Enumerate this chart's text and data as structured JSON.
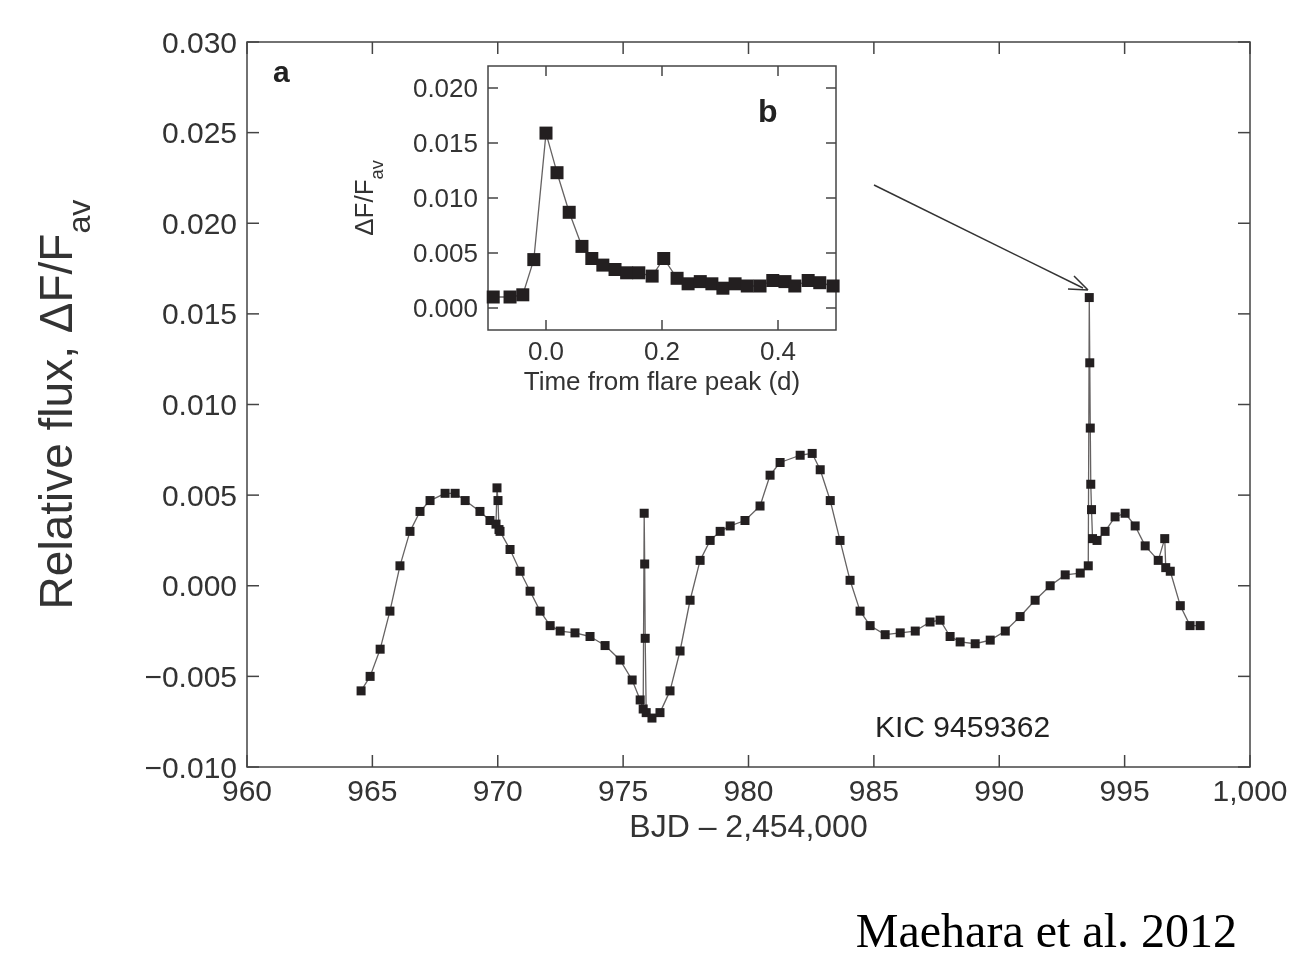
{
  "chart_data": [
    {
      "type": "line",
      "xlabel": "BJD – 2,454,000",
      "ylabel": "Relative flux, ΔF/F$_{av}$",
      "marker": "square",
      "xlim": [
        960,
        1000
      ],
      "ylim": [
        -0.01,
        0.03
      ],
      "xticks": [
        960,
        965,
        970,
        975,
        980,
        985,
        990,
        995,
        {
          "value": 1000,
          "label": "1,000"
        }
      ],
      "yticks": [
        {
          "value": -0.01,
          "label": "−0.010"
        },
        {
          "value": -0.005,
          "label": "−0.005"
        },
        {
          "value": 0,
          "label": "0.000"
        },
        {
          "value": 0.005,
          "label": "0.005"
        },
        {
          "value": 0.01,
          "label": "0.010"
        },
        {
          "value": 0.015,
          "label": "0.015"
        },
        {
          "value": 0.02,
          "label": "0.020"
        },
        {
          "value": 0.025,
          "label": "0.025"
        },
        {
          "value": 0.03,
          "label": "0.030"
        }
      ],
      "annotations": [
        "a",
        "KIC 9459362",
        "Maehara et al. 2012"
      ],
      "series": [
        {
          "color": "#231f20",
          "x": [
            964.55,
            964.91,
            965.31,
            965.7,
            966.1,
            966.5,
            966.9,
            967.3,
            967.9,
            968.3,
            968.7,
            969.29,
            969.69,
            969.93,
            969.97,
            970.01,
            970.05,
            970.09,
            970.49,
            970.89,
            971.29,
            971.69,
            972.09,
            972.49,
            973.08,
            973.68,
            974.28,
            974.88,
            975.36,
            975.68,
            975.8,
            975.84,
            975.86,
            975.88,
            975.92,
            976.15,
            976.47,
            976.87,
            977.27,
            977.67,
            978.07,
            978.47,
            978.87,
            979.27,
            979.86,
            980.46,
            980.86,
            981.26,
            982.06,
            982.54,
            982.86,
            983.26,
            983.65,
            984.05,
            984.45,
            984.85,
            985.45,
            986.05,
            986.65,
            987.24,
            987.64,
            988.04,
            988.44,
            989.04,
            989.64,
            990.24,
            990.83,
            991.43,
            992.03,
            992.63,
            993.23,
            993.55,
            993.59,
            993.61,
            993.63,
            993.65,
            993.68,
            993.72,
            993.9,
            994.22,
            994.62,
            995.02,
            995.42,
            995.82,
            996.34,
            996.6,
            996.64,
            996.82,
            997.22,
            997.61,
            998.01
          ],
          "values": [
            -0.0058,
            -0.005,
            -0.0035,
            -0.0014,
            0.0011,
            0.003,
            0.0041,
            0.0047,
            0.0051,
            0.0051,
            0.0047,
            0.0041,
            0.0036,
            0.0034,
            0.0054,
            0.0047,
            0.0031,
            0.003,
            0.002,
            0.0008,
            -0.0003,
            -0.0014,
            -0.0022,
            -0.0025,
            -0.0026,
            -0.0028,
            -0.0033,
            -0.0041,
            -0.0052,
            -0.0063,
            -0.0068,
            0.004,
            0.0012,
            -0.0029,
            -0.007,
            -0.0073,
            -0.007,
            -0.0058,
            -0.0036,
            -0.0008,
            0.0014,
            0.0025,
            0.003,
            0.0033,
            0.0036,
            0.0044,
            0.0061,
            0.0068,
            0.0072,
            0.0073,
            0.0064,
            0.0047,
            0.0025,
            0.0003,
            -0.0014,
            -0.0022,
            -0.0027,
            -0.0026,
            -0.0025,
            -0.002,
            -0.0019,
            -0.0028,
            -0.0031,
            -0.0032,
            -0.003,
            -0.0025,
            -0.0017,
            -0.0008,
            0,
            0.0006,
            0.0007,
            0.0011,
            0.0159,
            0.0123,
            0.0087,
            0.0056,
            0.0042,
            0.0026,
            0.0025,
            0.003,
            0.0038,
            0.004,
            0.0033,
            0.0022,
            0.0014,
            0.0026,
            0.001,
            0.0008,
            -0.0011,
            -0.0022,
            -0.0022
          ]
        }
      ]
    },
    {
      "type": "line",
      "xlabel": "Time from flare peak (d)",
      "ylabel": "ΔF/F$_{av}$",
      "marker": "square",
      "xlim": [
        -0.1,
        0.5
      ],
      "ylim": [
        -0.002,
        0.022
      ],
      "xticks": [
        {
          "value": 0,
          "label": "0.0"
        },
        {
          "value": 0.2,
          "label": "0.2"
        },
        {
          "value": 0.4,
          "label": "0.4"
        }
      ],
      "yticks": [
        {
          "value": 0,
          "label": "0.000"
        },
        {
          "value": 0.005,
          "label": "0.005"
        },
        {
          "value": 0.01,
          "label": "0.010"
        },
        {
          "value": 0.015,
          "label": "0.015"
        },
        {
          "value": 0.02,
          "label": "0.020"
        }
      ],
      "annotations": [
        "b"
      ],
      "series": [
        {
          "color": "#231f20",
          "x": [
            -0.091,
            -0.062,
            -0.04,
            -0.021,
            0,
            0.019,
            0.04,
            0.062,
            0.079,
            0.098,
            0.119,
            0.139,
            0.16,
            0.183,
            0.203,
            0.226,
            0.245,
            0.266,
            0.286,
            0.305,
            0.326,
            0.347,
            0.369,
            0.391,
            0.412,
            0.429,
            0.452,
            0.472,
            0.495
          ],
          "values": [
            0.001,
            0.001,
            0.0012,
            0.0044,
            0.0159,
            0.0123,
            0.0087,
            0.0056,
            0.0045,
            0.0039,
            0.0035,
            0.0032,
            0.0032,
            0.0029,
            0.0045,
            0.0027,
            0.0022,
            0.0024,
            0.0022,
            0.0018,
            0.0022,
            0.002,
            0.002,
            0.0025,
            0.0024,
            0.002,
            0.0025,
            0.0023,
            0.002
          ]
        }
      ]
    }
  ]
}
